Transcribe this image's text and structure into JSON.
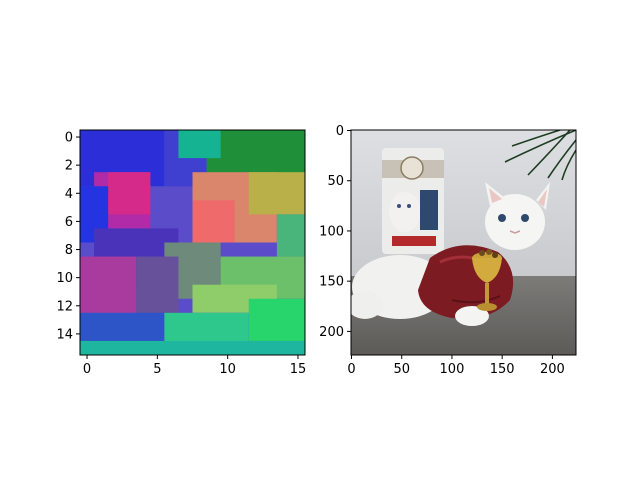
{
  "chart_data": [
    {
      "type": "heatmap",
      "x_ticks": [
        "0",
        "5",
        "10",
        "15"
      ],
      "y_ticks": [
        "0",
        "2",
        "4",
        "6",
        "8",
        "10",
        "12",
        "14"
      ],
      "xlim": [
        -0.5,
        15.5
      ],
      "ylim": [
        15.5,
        -0.5
      ],
      "grid": false,
      "regions": [
        {
          "r0": 0,
          "r1": 16,
          "c0": 0,
          "c1": 16,
          "color": "#5b4cc9"
        },
        {
          "r0": 0,
          "r1": 4,
          "c0": 0,
          "c1": 6,
          "color": "#2c2fd8"
        },
        {
          "r0": 0,
          "r1": 4,
          "c0": 6,
          "c1": 9,
          "color": "#3f3fd0"
        },
        {
          "r0": 0,
          "r1": 4,
          "c0": 9,
          "c1": 16,
          "color": "#1f8f3a"
        },
        {
          "r0": 0,
          "r1": 2,
          "c0": 7,
          "c1": 10,
          "color": "#16b392"
        },
        {
          "r0": 3,
          "r1": 7,
          "c0": 1,
          "c1": 5,
          "color": "#b12aa8"
        },
        {
          "r0": 3,
          "r1": 6,
          "c0": 2,
          "c1": 5,
          "color": "#d62a8a"
        },
        {
          "r0": 4,
          "r1": 8,
          "c0": 0,
          "c1": 2,
          "color": "#2334e0"
        },
        {
          "r0": 3,
          "r1": 8,
          "c0": 8,
          "c1": 14,
          "color": "#d9866c"
        },
        {
          "r0": 5,
          "r1": 8,
          "c0": 8,
          "c1": 11,
          "color": "#ef6b6b"
        },
        {
          "r0": 3,
          "r1": 6,
          "c0": 12,
          "c1": 16,
          "color": "#b9b04a"
        },
        {
          "r0": 6,
          "r1": 9,
          "c0": 14,
          "c1": 16,
          "color": "#4ab57a"
        },
        {
          "r0": 7,
          "r1": 11,
          "c0": 1,
          "c1": 7,
          "color": "#4a33b8"
        },
        {
          "r0": 8,
          "r1": 12,
          "c0": 6,
          "c1": 10,
          "color": "#6d8a7a"
        },
        {
          "r0": 9,
          "r1": 14,
          "c0": 0,
          "c1": 4,
          "color": "#a83b9d"
        },
        {
          "r0": 9,
          "r1": 13,
          "c0": 4,
          "c1": 7,
          "color": "#66519a"
        },
        {
          "r0": 9,
          "r1": 12,
          "c0": 10,
          "c1": 16,
          "color": "#6dc06a"
        },
        {
          "r0": 11,
          "r1": 13,
          "c0": 8,
          "c1": 14,
          "color": "#8fcc6a"
        },
        {
          "r0": 12,
          "r1": 16,
          "c0": 12,
          "c1": 16,
          "color": "#28d46c"
        },
        {
          "r0": 13,
          "r1": 16,
          "c0": 0,
          "c1": 6,
          "color": "#2d55c8"
        },
        {
          "r0": 13,
          "r1": 16,
          "c0": 6,
          "c1": 12,
          "color": "#2fc88c"
        },
        {
          "r0": 15,
          "r1": 16,
          "c0": 0,
          "c1": 16,
          "color": "#1fb6a0"
        }
      ]
    },
    {
      "type": "image",
      "x_ticks": [
        "0",
        "50",
        "100",
        "150",
        "200"
      ],
      "y_ticks": [
        "0",
        "50",
        "100",
        "150",
        "200"
      ],
      "xlim": [
        -0.5,
        223.5
      ],
      "ylim": [
        223.5,
        -0.5
      ],
      "grid": false
    }
  ]
}
